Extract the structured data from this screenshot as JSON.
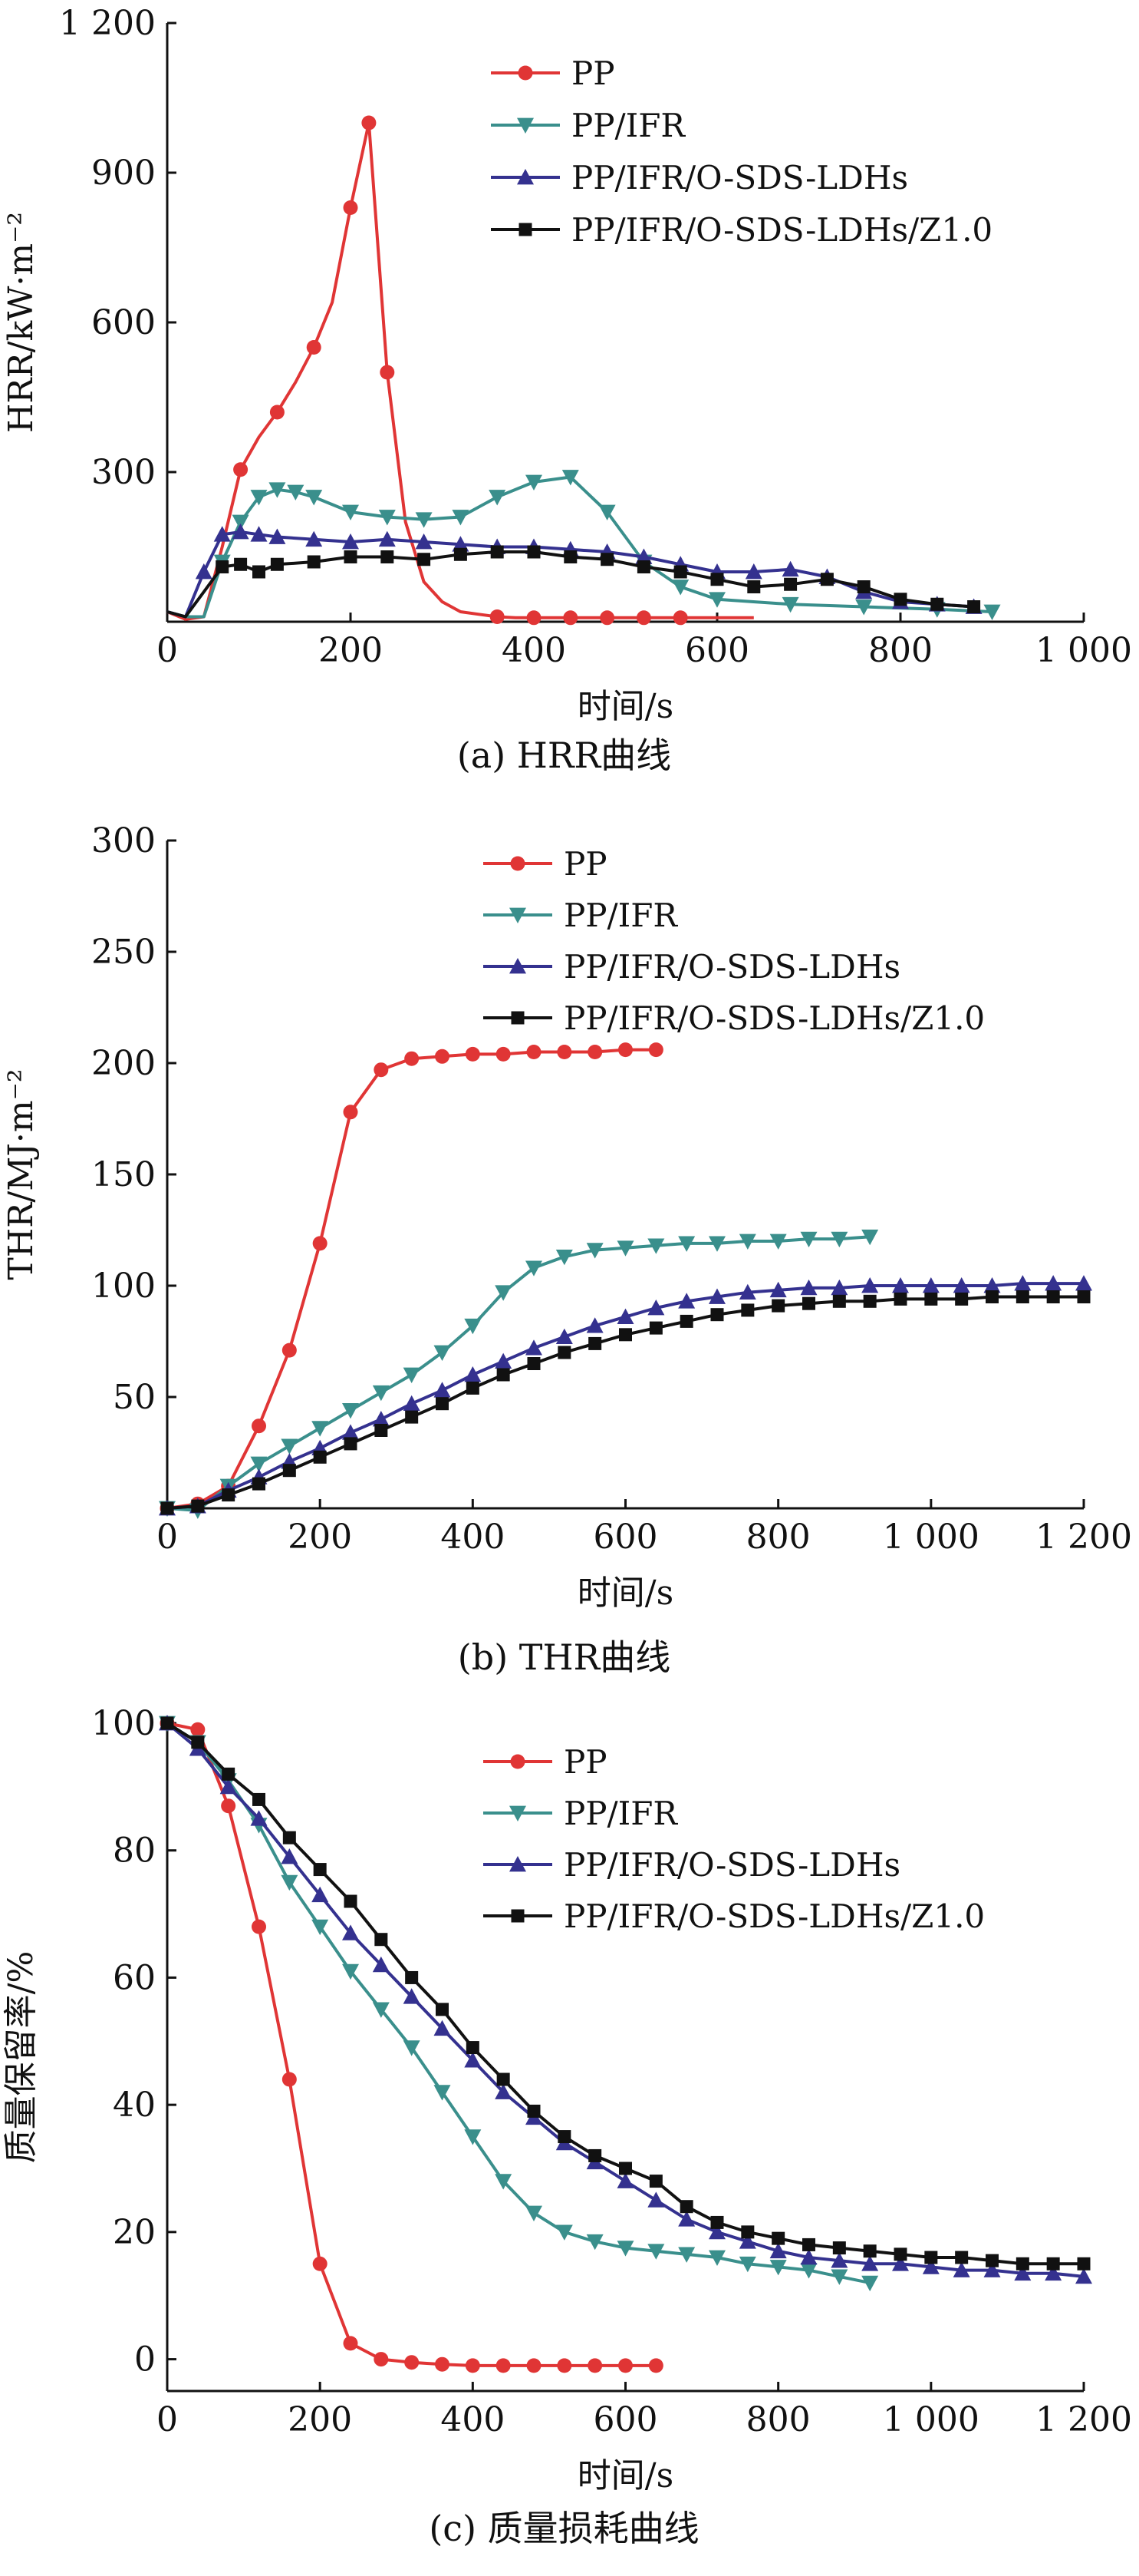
{
  "charts": [
    {
      "type": "line",
      "caption": "(a) HRR曲线",
      "xlabel": "时间/s",
      "ylabel": "HRR/kW·m⁻²",
      "xlim": [
        0,
        1000
      ],
      "ylim": [
        0,
        1200
      ],
      "xticks": [
        0,
        200,
        400,
        600,
        800,
        1000
      ],
      "xtick_labels": [
        "0",
        "200",
        "400",
        "600",
        "800",
        "1 000"
      ],
      "yticks": [
        300,
        600,
        900,
        1200
      ],
      "ytick_labels": [
        "300",
        "600",
        "900",
        "1 200"
      ],
      "legend_position": "top-right",
      "series": [
        {
          "name": "PP",
          "color": "#e03535",
          "marker": "circle",
          "x": [
            0,
            20,
            40,
            60,
            80,
            100,
            120,
            140,
            160,
            180,
            200,
            220,
            240,
            260,
            280,
            300,
            320,
            340,
            360,
            380,
            400,
            440,
            480,
            520,
            560,
            600,
            640
          ],
          "y": [
            20,
            5,
            10,
            150,
            305,
            370,
            420,
            480,
            550,
            640,
            830,
            1000,
            500,
            200,
            80,
            40,
            20,
            15,
            10,
            8,
            8,
            8,
            8,
            8,
            8,
            8,
            8
          ],
          "marked": [
            4,
            6,
            8,
            10,
            11,
            12,
            18,
            20,
            21,
            22,
            23,
            24
          ]
        },
        {
          "name": "PP/IFR",
          "color": "#3a8f8c",
          "marker": "triangle-down",
          "x": [
            0,
            20,
            40,
            60,
            80,
            100,
            120,
            140,
            160,
            200,
            240,
            280,
            320,
            360,
            400,
            440,
            480,
            520,
            560,
            600,
            680,
            760,
            840,
            900
          ],
          "y": [
            20,
            10,
            10,
            120,
            200,
            250,
            265,
            260,
            250,
            220,
            210,
            205,
            210,
            250,
            280,
            290,
            220,
            120,
            70,
            45,
            35,
            30,
            25,
            20
          ],
          "marked": [
            3,
            4,
            5,
            6,
            7,
            8,
            9,
            10,
            11,
            12,
            13,
            14,
            15,
            16,
            17,
            18,
            19,
            20,
            21,
            22,
            23
          ]
        },
        {
          "name": "PP/IFR/O-SDS-LDHs",
          "color": "#34318f",
          "marker": "triangle-up",
          "x": [
            0,
            20,
            40,
            60,
            80,
            100,
            120,
            160,
            200,
            240,
            280,
            320,
            360,
            400,
            440,
            480,
            520,
            560,
            600,
            640,
            680,
            720,
            760,
            800,
            840,
            880
          ],
          "y": [
            20,
            10,
            100,
            175,
            180,
            175,
            170,
            165,
            160,
            165,
            160,
            155,
            150,
            150,
            145,
            140,
            130,
            115,
            100,
            100,
            105,
            90,
            60,
            40,
            35,
            30
          ],
          "marked": [
            2,
            3,
            4,
            5,
            6,
            7,
            8,
            9,
            10,
            11,
            12,
            13,
            14,
            15,
            16,
            17,
            18,
            19,
            20,
            21,
            22,
            23,
            24,
            25
          ]
        },
        {
          "name": "PP/IFR/O-SDS-LDHs/Z1.0",
          "color": "#111111",
          "marker": "square",
          "x": [
            0,
            20,
            40,
            60,
            80,
            100,
            120,
            160,
            200,
            240,
            280,
            320,
            360,
            400,
            440,
            480,
            520,
            560,
            600,
            640,
            680,
            720,
            760,
            800,
            840,
            880
          ],
          "y": [
            20,
            10,
            60,
            110,
            115,
            100,
            115,
            120,
            130,
            130,
            125,
            135,
            140,
            140,
            130,
            125,
            110,
            100,
            85,
            70,
            75,
            85,
            70,
            45,
            35,
            30
          ],
          "marked": [
            3,
            4,
            5,
            6,
            7,
            8,
            9,
            10,
            11,
            12,
            13,
            14,
            15,
            16,
            17,
            18,
            19,
            20,
            21,
            22,
            23,
            24,
            25
          ]
        }
      ]
    },
    {
      "type": "line",
      "caption": "(b) THR曲线",
      "xlabel": "时间/s",
      "ylabel": "THR/MJ·m⁻²",
      "xlim": [
        0,
        1200
      ],
      "ylim": [
        0,
        300
      ],
      "xticks": [
        0,
        200,
        400,
        600,
        800,
        1000,
        1200
      ],
      "xtick_labels": [
        "0",
        "200",
        "400",
        "600",
        "800",
        "1 000",
        "1 200"
      ],
      "yticks": [
        50,
        100,
        150,
        200,
        250,
        300
      ],
      "ytick_labels": [
        "50",
        "100",
        "150",
        "200",
        "250",
        "300"
      ],
      "legend_position": "top-right",
      "series": [
        {
          "name": "PP",
          "color": "#e03535",
          "marker": "circle",
          "x": [
            0,
            40,
            80,
            120,
            160,
            200,
            240,
            280,
            320,
            360,
            400,
            440,
            480,
            520,
            560,
            600,
            640
          ],
          "y": [
            0,
            2,
            10,
            37,
            71,
            119,
            178,
            197,
            202,
            203,
            204,
            204,
            205,
            205,
            205,
            206,
            206
          ]
        },
        {
          "name": "PP/IFR",
          "color": "#3a8f8c",
          "marker": "triangle-down",
          "x": [
            0,
            40,
            80,
            120,
            160,
            200,
            240,
            280,
            320,
            360,
            400,
            440,
            480,
            520,
            560,
            600,
            640,
            680,
            720,
            760,
            800,
            840,
            880,
            920
          ],
          "y": [
            0,
            -1,
            10,
            20,
            28,
            36,
            44,
            52,
            60,
            70,
            82,
            97,
            108,
            113,
            116,
            117,
            118,
            119,
            119,
            120,
            120,
            121,
            121,
            122
          ]
        },
        {
          "name": "PP/IFR/O-SDS-LDHs",
          "color": "#34318f",
          "marker": "triangle-up",
          "x": [
            0,
            40,
            80,
            120,
            160,
            200,
            240,
            280,
            320,
            360,
            400,
            440,
            480,
            520,
            560,
            600,
            640,
            680,
            720,
            760,
            800,
            840,
            880,
            920,
            960,
            1000,
            1040,
            1080,
            1120,
            1160,
            1200
          ],
          "y": [
            0,
            1,
            8,
            14,
            21,
            27,
            34,
            40,
            47,
            53,
            60,
            66,
            72,
            77,
            82,
            86,
            90,
            93,
            95,
            97,
            98,
            99,
            99,
            100,
            100,
            100,
            100,
            100,
            101,
            101,
            101
          ]
        },
        {
          "name": "PP/IFR/O-SDS-LDHs/Z1.0",
          "color": "#111111",
          "marker": "square",
          "x": [
            0,
            40,
            80,
            120,
            160,
            200,
            240,
            280,
            320,
            360,
            400,
            440,
            480,
            520,
            560,
            600,
            640,
            680,
            720,
            760,
            800,
            840,
            880,
            920,
            960,
            1000,
            1040,
            1080,
            1120,
            1160,
            1200
          ],
          "y": [
            0,
            1,
            6,
            11,
            17,
            23,
            29,
            35,
            41,
            47,
            54,
            60,
            65,
            70,
            74,
            78,
            81,
            84,
            87,
            89,
            91,
            92,
            93,
            93,
            94,
            94,
            94,
            95,
            95,
            95,
            95
          ]
        }
      ]
    },
    {
      "type": "line",
      "caption": "(c) 质量损耗曲线",
      "xlabel": "时间/s",
      "ylabel": "质量保留率/%",
      "xlim": [
        0,
        1200
      ],
      "ylim": [
        -5,
        100
      ],
      "xticks": [
        0,
        200,
        400,
        600,
        800,
        1000,
        1200
      ],
      "xtick_labels": [
        "0",
        "200",
        "400",
        "600",
        "800",
        "1 000",
        "1 200"
      ],
      "yticks": [
        0,
        20,
        40,
        60,
        80,
        100
      ],
      "ytick_labels": [
        "0",
        "20",
        "40",
        "60",
        "80",
        "100"
      ],
      "legend_position": "top-right",
      "series": [
        {
          "name": "PP",
          "color": "#e03535",
          "marker": "circle",
          "x": [
            0,
            40,
            80,
            120,
            160,
            200,
            240,
            280,
            320,
            360,
            400,
            440,
            480,
            520,
            560,
            600,
            640
          ],
          "y": [
            100,
            99,
            87,
            68,
            44,
            15,
            2.5,
            0,
            -0.5,
            -0.8,
            -1,
            -1,
            -1,
            -1,
            -1,
            -1,
            -1
          ]
        },
        {
          "name": "PP/IFR",
          "color": "#3a8f8c",
          "marker": "triangle-down",
          "x": [
            0,
            40,
            80,
            120,
            160,
            200,
            240,
            280,
            320,
            360,
            400,
            440,
            480,
            520,
            560,
            600,
            640,
            680,
            720,
            760,
            800,
            840,
            880,
            920
          ],
          "y": [
            100,
            97,
            91,
            84,
            75,
            68,
            61,
            55,
            49,
            42,
            35,
            28,
            23,
            20,
            18.5,
            17.5,
            17,
            16.5,
            16,
            15,
            14.5,
            14,
            13,
            12
          ]
        },
        {
          "name": "PP/IFR/O-SDS-LDHs",
          "color": "#34318f",
          "marker": "triangle-up",
          "x": [
            0,
            40,
            80,
            120,
            160,
            200,
            240,
            280,
            320,
            360,
            400,
            440,
            480,
            520,
            560,
            600,
            640,
            680,
            720,
            760,
            800,
            840,
            880,
            920,
            960,
            1000,
            1040,
            1080,
            1120,
            1160,
            1200
          ],
          "y": [
            100,
            96,
            90,
            85,
            79,
            73,
            67,
            62,
            57,
            52,
            47,
            42,
            38,
            34,
            31,
            28,
            25,
            22,
            20,
            18.5,
            17,
            16,
            15.5,
            15,
            15,
            14.5,
            14,
            14,
            13.5,
            13.5,
            13
          ]
        },
        {
          "name": "PP/IFR/O-SDS-LDHs/Z1.0",
          "color": "#111111",
          "marker": "square",
          "x": [
            0,
            40,
            80,
            120,
            160,
            200,
            240,
            280,
            320,
            360,
            400,
            440,
            480,
            520,
            560,
            600,
            640,
            680,
            720,
            760,
            800,
            840,
            880,
            920,
            960,
            1000,
            1040,
            1080,
            1120,
            1160,
            1200
          ],
          "y": [
            100,
            97,
            92,
            88,
            82,
            77,
            72,
            66,
            60,
            55,
            49,
            44,
            39,
            35,
            32,
            30,
            28,
            24,
            21.5,
            20,
            19,
            18,
            17.5,
            17,
            16.5,
            16,
            16,
            15.5,
            15,
            15,
            15
          ]
        }
      ]
    }
  ]
}
